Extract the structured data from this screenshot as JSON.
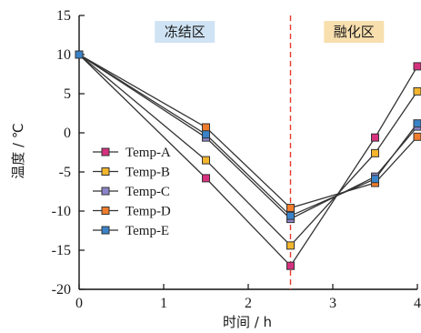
{
  "chart_data": {
    "type": "line",
    "xlabel": "时间 / h",
    "ylabel": "温度 / ℃",
    "xlim": [
      0,
      4
    ],
    "ylim": [
      -20,
      15
    ],
    "xticks": [
      0,
      1,
      2,
      3,
      4
    ],
    "yticks": [
      -20,
      -15,
      -10,
      -5,
      0,
      5,
      10,
      15
    ],
    "grid": false,
    "legend_position": "left",
    "marker_line_color": "#333333",
    "annotations": [
      {
        "text": "冻结区",
        "background": "#cfe3f4"
      },
      {
        "text": "融化区",
        "background": "#f8dfae"
      }
    ],
    "reference_line": {
      "x": 2.5,
      "style": "dashed",
      "color": "#e8392b"
    },
    "x": [
      0,
      1.5,
      2.5,
      3.5,
      4
    ],
    "series": [
      {
        "name": "Temp-A",
        "color": "#d6317f",
        "values": [
          10,
          -5.8,
          -17.0,
          -0.6,
          8.5
        ]
      },
      {
        "name": "Temp-B",
        "color": "#f2b52c",
        "values": [
          10,
          -3.5,
          -14.4,
          -2.6,
          5.3
        ]
      },
      {
        "name": "Temp-C",
        "color": "#8c85c8",
        "values": [
          10,
          -0.6,
          -11.0,
          -5.6,
          0.8
        ]
      },
      {
        "name": "Temp-D",
        "color": "#f07c2b",
        "values": [
          10,
          0.7,
          -9.6,
          -6.4,
          -0.5
        ]
      },
      {
        "name": "Temp-E",
        "color": "#3a83c8",
        "values": [
          10,
          -0.2,
          -10.6,
          -5.9,
          1.2
        ]
      }
    ]
  }
}
